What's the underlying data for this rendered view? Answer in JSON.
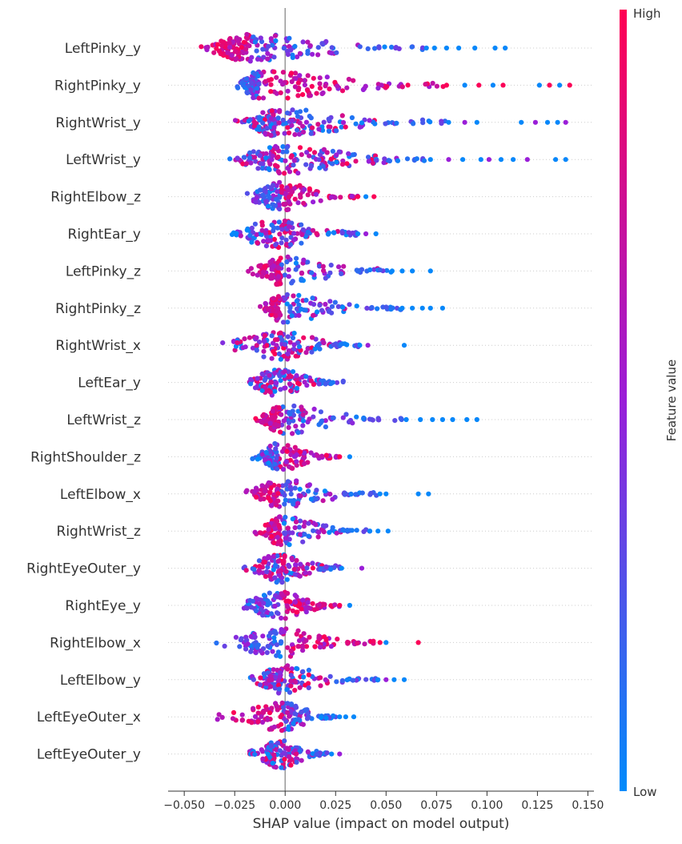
{
  "chart_data": {
    "type": "scatter",
    "subtype": "beeswarm",
    "xlabel": "SHAP value (impact on model output)",
    "xlim": [
      -0.058,
      0.153
    ],
    "xticks": [
      -0.05,
      -0.025,
      0.0,
      0.025,
      0.05,
      0.075,
      0.1,
      0.125,
      0.15
    ],
    "xtick_labels": [
      "−0.050",
      "−0.025",
      "0.000",
      "0.025",
      "0.050",
      "0.075",
      "0.100",
      "0.125",
      "0.150"
    ],
    "grid": "row guides (dotted)",
    "colorbar": {
      "label": "Feature value",
      "high_label": "High",
      "low_label": "Low",
      "high_color": "#ff0052",
      "low_color": "#008bfb"
    },
    "features": [
      {
        "name": "LeftPinky_y",
        "x_range": [
          -0.048,
          0.109
        ],
        "density_center": -0.018,
        "high_side": "left",
        "outliers": [
          0.07,
          0.074,
          0.08,
          0.086,
          0.094,
          0.104,
          0.109
        ]
      },
      {
        "name": "RightPinky_y",
        "x_range": [
          -0.028,
          0.141
        ],
        "density_center": -0.013,
        "high_side": "right",
        "outliers": [
          0.08,
          0.089,
          0.096,
          0.103,
          0.108,
          0.126,
          0.131,
          0.136,
          0.141
        ]
      },
      {
        "name": "RightWrist_y",
        "x_range": [
          -0.028,
          0.139
        ],
        "density_center": -0.005,
        "high_side": "mixed",
        "outliers": [
          0.081,
          0.089,
          0.095,
          0.117,
          0.124,
          0.13,
          0.135,
          0.139
        ]
      },
      {
        "name": "LeftWrist_y",
        "x_range": [
          -0.036,
          0.139
        ],
        "density_center": -0.002,
        "high_side": "mixed",
        "outliers": [
          0.072,
          0.081,
          0.088,
          0.097,
          0.101,
          0.107,
          0.113,
          0.12,
          0.134,
          0.139
        ]
      },
      {
        "name": "RightElbow_z",
        "x_range": [
          -0.025,
          0.044
        ],
        "density_center": -0.002,
        "high_side": "right",
        "outliers": [
          0.036,
          0.04,
          0.044
        ]
      },
      {
        "name": "RightEar_y",
        "x_range": [
          -0.035,
          0.045
        ],
        "density_center": -0.005,
        "high_side": "mixed",
        "outliers": [
          0.036,
          0.04,
          0.045
        ]
      },
      {
        "name": "LeftPinky_z",
        "x_range": [
          -0.022,
          0.072
        ],
        "density_center": -0.002,
        "high_side": "left",
        "outliers": [
          0.053,
          0.058,
          0.063,
          0.072
        ]
      },
      {
        "name": "RightPinky_z",
        "x_range": [
          -0.015,
          0.078
        ],
        "density_center": -0.002,
        "high_side": "left",
        "outliers": [
          0.058,
          0.063,
          0.068,
          0.072,
          0.078
        ]
      },
      {
        "name": "RightWrist_x",
        "x_range": [
          -0.041,
          0.059
        ],
        "density_center": -0.002,
        "high_side": "mixed",
        "outliers": [
          0.037,
          0.041,
          0.059
        ]
      },
      {
        "name": "LeftEar_y",
        "x_range": [
          -0.024,
          0.029
        ],
        "density_center": -0.004,
        "high_side": "mixed",
        "outliers": []
      },
      {
        "name": "LeftWrist_z",
        "x_range": [
          -0.019,
          0.095
        ],
        "density_center": -0.002,
        "high_side": "left",
        "outliers": [
          0.06,
          0.067,
          0.073,
          0.078,
          0.083,
          0.09,
          0.095
        ]
      },
      {
        "name": "RightShoulder_z",
        "x_range": [
          -0.018,
          0.032
        ],
        "density_center": -0.003,
        "high_side": "right",
        "outliers": [
          0.027,
          0.032
        ]
      },
      {
        "name": "LeftElbow_x",
        "x_range": [
          -0.026,
          0.071
        ],
        "density_center": -0.002,
        "high_side": "left",
        "outliers": [
          0.047,
          0.05,
          0.066,
          0.071
        ]
      },
      {
        "name": "RightWrist_z",
        "x_range": [
          -0.018,
          0.051
        ],
        "density_center": -0.002,
        "high_side": "left",
        "outliers": [
          0.042,
          0.046,
          0.051
        ]
      },
      {
        "name": "RightEyeOuter_y",
        "x_range": [
          -0.026,
          0.038
        ],
        "density_center": -0.003,
        "high_side": "mixed",
        "outliers": [
          0.028,
          0.038
        ]
      },
      {
        "name": "RightEye_y",
        "x_range": [
          -0.028,
          0.032
        ],
        "density_center": -0.003,
        "high_side": "right",
        "outliers": [
          0.027,
          0.032
        ]
      },
      {
        "name": "RightElbow_x",
        "x_range": [
          -0.044,
          0.066
        ],
        "density_center": -0.002,
        "high_side": "right",
        "outliers": [
          0.047,
          0.05,
          0.066
        ]
      },
      {
        "name": "LeftElbow_y",
        "x_range": [
          -0.02,
          0.059
        ],
        "density_center": -0.002,
        "high_side": "mixed",
        "outliers": [
          0.046,
          0.05,
          0.054,
          0.059
        ]
      },
      {
        "name": "LeftEyeOuter_x",
        "x_range": [
          -0.041,
          0.034
        ],
        "density_center": -0.001,
        "high_side": "left",
        "outliers": [
          0.027,
          0.03,
          0.034
        ]
      },
      {
        "name": "LeftEyeOuter_y",
        "x_range": [
          -0.023,
          0.027
        ],
        "density_center": -0.002,
        "high_side": "mixed",
        "outliers": [
          0.023,
          0.027
        ]
      }
    ]
  }
}
